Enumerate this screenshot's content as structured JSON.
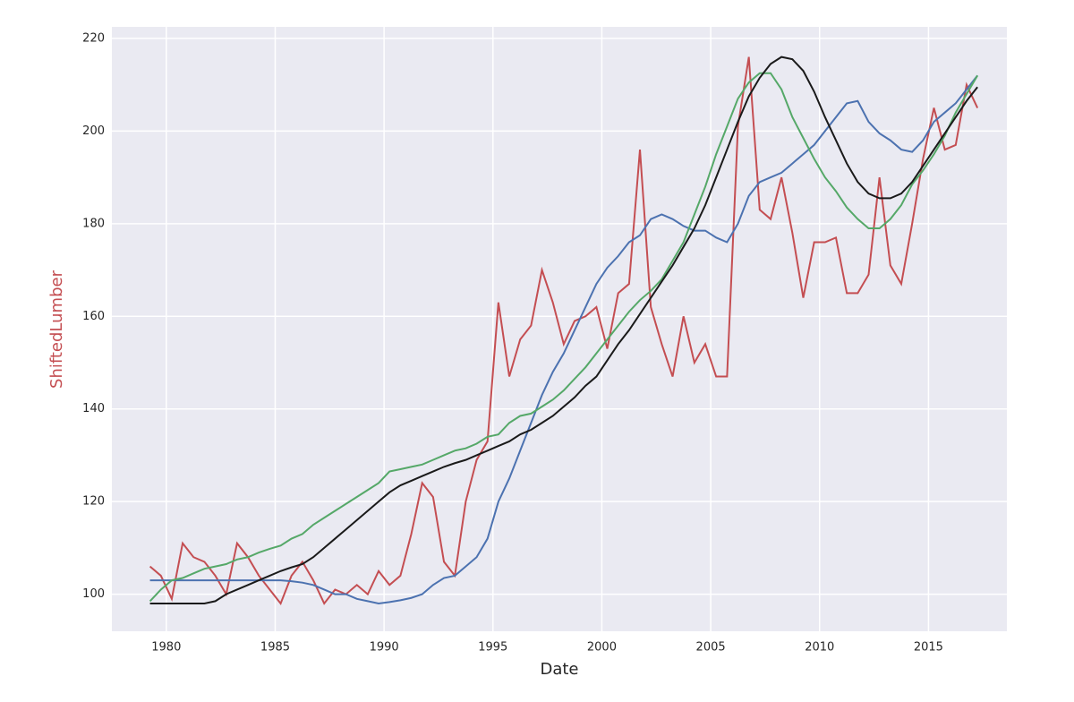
{
  "chart_data": {
    "type": "line",
    "x_label": "Date",
    "y_label": "ShiftedLumber",
    "y_label_color": "#c44e52",
    "grid": true,
    "xlim": [
      1977.5,
      2018.6
    ],
    "ylim": [
      92,
      222.5
    ],
    "xticks": [
      1980,
      1985,
      1990,
      1995,
      2000,
      2005,
      2010,
      2015
    ],
    "yticks": [
      100,
      120,
      140,
      160,
      180,
      200,
      220
    ],
    "x": [
      1979.25,
      1979.75,
      1980.25,
      1980.75,
      1981.25,
      1981.75,
      1982.25,
      1982.75,
      1983.25,
      1983.75,
      1984.25,
      1984.75,
      1985.25,
      1985.75,
      1986.25,
      1986.75,
      1987.25,
      1987.75,
      1988.25,
      1988.75,
      1989.25,
      1989.75,
      1990.25,
      1990.75,
      1991.25,
      1991.75,
      1992.25,
      1992.75,
      1993.25,
      1993.75,
      1994.25,
      1994.75,
      1995.25,
      1995.75,
      1996.25,
      1996.75,
      1997.25,
      1997.75,
      1998.25,
      1998.75,
      1999.25,
      1999.75,
      2000.25,
      2000.75,
      2001.25,
      2001.75,
      2002.25,
      2002.75,
      2003.25,
      2003.75,
      2004.25,
      2004.75,
      2005.25,
      2005.75,
      2006.25,
      2006.75,
      2007.25,
      2007.75,
      2008.25,
      2008.75,
      2009.25,
      2009.75,
      2010.25,
      2010.75,
      2011.25,
      2011.75,
      2012.25,
      2012.75,
      2013.25,
      2013.75,
      2014.25,
      2014.75,
      2015.25,
      2015.75,
      2016.25,
      2016.75,
      2017.25
    ],
    "series": [
      {
        "color": "#c44e52",
        "values": [
          106,
          104,
          99,
          111,
          108,
          107,
          104,
          100,
          111,
          108,
          104,
          101,
          98,
          104,
          107,
          103,
          98,
          101,
          100,
          102,
          100,
          105,
          102,
          104,
          113,
          124,
          121,
          107,
          104,
          120,
          129,
          133,
          163,
          147,
          155,
          158,
          170,
          163,
          154,
          159,
          160,
          162,
          153,
          165,
          167,
          196,
          162,
          154,
          147,
          160,
          150,
          154,
          147,
          147,
          201,
          216,
          183,
          181,
          190,
          178,
          164,
          176,
          176,
          177,
          165,
          165,
          169,
          190,
          171,
          167,
          180,
          194,
          205,
          196,
          197,
          210,
          205
        ]
      },
      {
        "color": "#4c72b0",
        "values": [
          103,
          103,
          103,
          103,
          103,
          103,
          103,
          103,
          103,
          103,
          103,
          103,
          103,
          102.8,
          102.5,
          102,
          101,
          100,
          100,
          99,
          98.5,
          98,
          98.3,
          98.7,
          99.2,
          100,
          102,
          103.5,
          104,
          106,
          108,
          112,
          120,
          125,
          131,
          137,
          143,
          148,
          152,
          157,
          162,
          167,
          170.5,
          173,
          176,
          177.5,
          181,
          182,
          181,
          179.5,
          178.5,
          178.5,
          177,
          176,
          180,
          186,
          189,
          190,
          191,
          193,
          195,
          197,
          200,
          203,
          206,
          206.5,
          202,
          199.5,
          198,
          196,
          195.5,
          198,
          202,
          204,
          206,
          209,
          212
        ]
      },
      {
        "color": "#55a868",
        "values": [
          98.5,
          101,
          103,
          103.5,
          104.5,
          105.5,
          106,
          106.5,
          107.5,
          108,
          109,
          109.8,
          110.5,
          112,
          113,
          115,
          116.5,
          118,
          119.5,
          121,
          122.5,
          124,
          126.5,
          127,
          127.5,
          128,
          129,
          130,
          131,
          131.5,
          132.5,
          134,
          134.5,
          137,
          138.5,
          139,
          140.5,
          142,
          144,
          146.5,
          149,
          152,
          155,
          158,
          161,
          163.5,
          165.5,
          168,
          172,
          176,
          182,
          188,
          195,
          201,
          207,
          210.5,
          212.5,
          212.5,
          209,
          203,
          198.5,
          194,
          190,
          187,
          183.5,
          181,
          179,
          179,
          181,
          184,
          188.5,
          191.5,
          195,
          199,
          204,
          208,
          212
        ]
      },
      {
        "color": "#1a1a1a",
        "values": [
          98,
          98,
          98,
          98,
          98,
          98,
          98.5,
          100,
          101,
          102,
          103,
          104,
          105,
          105.8,
          106.5,
          108,
          110,
          112,
          114,
          116,
          118,
          120,
          122,
          123.5,
          124.5,
          125.5,
          126.5,
          127.5,
          128.3,
          129,
          130,
          131,
          132,
          133,
          134.5,
          135.5,
          137,
          138.5,
          140.5,
          142.5,
          145,
          147,
          150.5,
          154,
          157,
          160.5,
          164,
          167.5,
          171,
          175,
          179,
          184,
          190,
          196,
          202,
          207.5,
          211.5,
          214.5,
          216,
          215.5,
          213,
          208.5,
          203,
          198,
          193,
          189,
          186.5,
          185.5,
          185.5,
          186.5,
          189,
          192.5,
          196,
          199.5,
          203,
          206.5,
          209.5
        ]
      }
    ]
  }
}
